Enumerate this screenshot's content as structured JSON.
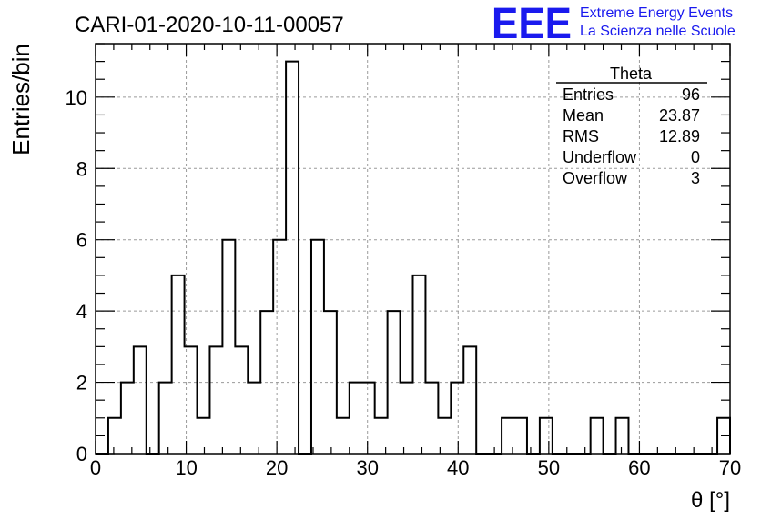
{
  "header": {
    "title": "CARI-01-2020-10-11-00057",
    "logo_text": "EEE",
    "logo_line1": "Extreme Energy Events",
    "logo_line2": "La Scienza nelle Scuole",
    "logo_color": "#1a1aee"
  },
  "stats": {
    "name": "Theta",
    "rows": [
      {
        "label": "Entries",
        "value": "96"
      },
      {
        "label": "Mean",
        "value": "23.87"
      },
      {
        "label": "RMS",
        "value": "12.89"
      },
      {
        "label": "Underflow",
        "value": "0"
      },
      {
        "label": "Overflow",
        "value": "3"
      }
    ]
  },
  "chart_data": {
    "type": "bar",
    "style": "step-histogram",
    "bin_width": 1.4,
    "bin_start": 0,
    "values": [
      0,
      1,
      2,
      3,
      0,
      2,
      5,
      3,
      1,
      3,
      6,
      3,
      2,
      4,
      6,
      11,
      0,
      6,
      4,
      1,
      2,
      2,
      1,
      4,
      2,
      5,
      2,
      1,
      2,
      3,
      0,
      0,
      1,
      1,
      0,
      1,
      0,
      0,
      0,
      1,
      0,
      1,
      0,
      0,
      0,
      0,
      0,
      0,
      0,
      1
    ],
    "xlim": [
      0,
      70
    ],
    "ylim": [
      0,
      11.5
    ],
    "xticks": [
      0,
      10,
      20,
      30,
      40,
      50,
      60,
      70
    ],
    "yticks": [
      0,
      2,
      4,
      6,
      8,
      10
    ],
    "xlabel": "θ [°]",
    "ylabel": "Entries/bin",
    "grid": true,
    "line_color": "#000000"
  }
}
